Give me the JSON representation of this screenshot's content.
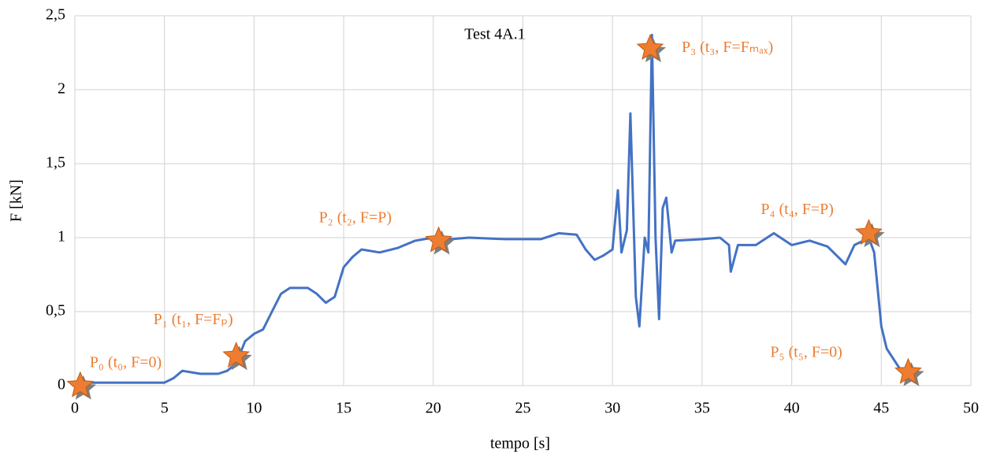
{
  "chart_data": {
    "type": "line",
    "title": "Test 4A.1",
    "x_label": "tempo [s]",
    "y_label": "F [kN]",
    "xlim": [
      0,
      50
    ],
    "ylim": [
      0,
      2.5
    ],
    "xticks": [
      0,
      5,
      10,
      15,
      20,
      25,
      30,
      35,
      40,
      45,
      50
    ],
    "yticks": [
      0,
      {
        "value": 0.5,
        "label": "0,5"
      },
      1,
      {
        "value": 1.5,
        "label": "1,5"
      },
      2,
      {
        "value": 2.5,
        "label": "2,5"
      }
    ],
    "grid": true,
    "x": [
      0.3,
      2,
      4,
      5,
      5.5,
      6,
      6.5,
      7,
      8,
      8.5,
      9,
      9.5,
      10,
      10.5,
      11,
      11.5,
      12,
      13,
      13.5,
      14,
      14.5,
      15,
      15.5,
      16,
      17,
      18,
      19,
      20,
      21,
      22,
      24,
      26,
      27,
      28,
      28.5,
      29,
      29.5,
      30,
      30.3,
      30.5,
      30.8,
      31,
      31.3,
      31.5,
      31.8,
      32,
      32.2,
      32.4,
      32.6,
      32.8,
      33,
      33.3,
      33.5,
      35,
      36,
      36.5,
      36.6,
      37,
      38,
      39,
      40,
      41,
      42,
      43,
      43.5,
      44,
      44.3,
      44.6,
      45,
      45.3,
      46,
      46.5
    ],
    "series": [
      {
        "color": "#4472c4",
        "values": [
          0.02,
          0.02,
          0.02,
          0.02,
          0.05,
          0.1,
          0.09,
          0.08,
          0.08,
          0.1,
          0.15,
          0.3,
          0.35,
          0.38,
          0.5,
          0.62,
          0.66,
          0.66,
          0.62,
          0.56,
          0.6,
          0.8,
          0.87,
          0.92,
          0.9,
          0.93,
          0.98,
          1.0,
          0.99,
          1.0,
          0.99,
          0.99,
          1.03,
          1.02,
          0.92,
          0.85,
          0.88,
          0.92,
          1.32,
          0.9,
          1.05,
          1.84,
          0.6,
          0.4,
          1.0,
          0.9,
          2.37,
          1.0,
          0.45,
          1.2,
          1.27,
          0.9,
          0.98,
          0.99,
          1.0,
          0.95,
          0.77,
          0.95,
          0.95,
          1.03,
          0.95,
          0.98,
          0.94,
          0.82,
          0.95,
          0.98,
          1.0,
          0.9,
          0.4,
          0.25,
          0.12,
          0.09
        ]
      }
    ],
    "marker_color": "#ed7d31",
    "markers": [
      {
        "x": 0.3,
        "y": 0,
        "label": "P₀ (t₀, F=0)"
      },
      {
        "x": 9,
        "y": 0.2,
        "label": "P₁ (t₁, F=Fₚ)"
      },
      {
        "x": 20.3,
        "y": 0.98,
        "label": "P₂ (t₂, F=P)"
      },
      {
        "x": 32.1,
        "y": 2.28,
        "label": "P₃ (t₃, F=Fₘₐₓ)"
      },
      {
        "x": 44.3,
        "y": 1.03,
        "label": "P₄ (t₄, F=P)"
      },
      {
        "x": 46.5,
        "y": 0.09,
        "label": "P₅ (t₅, F=0)"
      }
    ]
  }
}
